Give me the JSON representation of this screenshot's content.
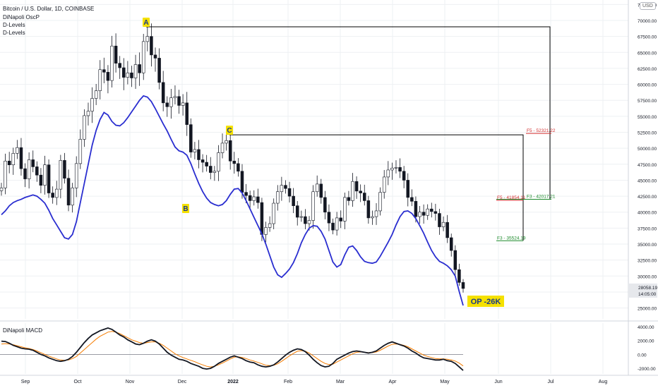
{
  "header": {
    "symbol_line": "Bitcoin / U.S. Dollar, 1D, COINBASE",
    "indicators": [
      "DiNapoli OscP",
      "D-Levels",
      "D-Levels"
    ],
    "currency_badge": "USD"
  },
  "macd_panel": {
    "title": "DiNapoli MACD"
  },
  "colors": {
    "candle": "#131722",
    "oscp_line": "#2a2ed0",
    "macd_line": "#131722",
    "signal_line": "#f57c00",
    "label_bg": "#f5e100",
    "f3_color": "#1b8a2a",
    "f5_color": "#d32f2f",
    "swing_line": "#000000"
  },
  "chart_data": [
    {
      "type": "candlestick",
      "title": "Bitcoin / U.S. Dollar, 1D, COINBASE",
      "x_ticks": [
        "Sep",
        "Oct",
        "Nov",
        "Dec",
        "2022",
        "Feb",
        "Mar",
        "Apr",
        "May",
        "Jun",
        "Jul",
        "Aug"
      ],
      "y_ticks": [
        "72500.00",
        "70000.00",
        "67500.00",
        "65000.00",
        "62500.00",
        "60000.00",
        "57500.00",
        "55000.00",
        "52500.00",
        "50000.00",
        "47500.00",
        "45000.00",
        "42500.00",
        "40000.00",
        "37500.00",
        "35000.00",
        "32500.00",
        "30000.00",
        "27500.00",
        "25000.00"
      ],
      "ylim": [
        23300,
        73200
      ],
      "last_price": "28058.19",
      "countdown": "14:05:00",
      "swing_points": [
        {
          "label": "A",
          "value": 69000
        },
        {
          "label": "B",
          "value": 42000
        },
        {
          "label": "C",
          "value": 52100
        }
      ],
      "levels": [
        {
          "label": "F5 - 52321.22",
          "value": 52321.22,
          "kind": "F5"
        },
        {
          "label": "F3 - 42017.21",
          "value": 42017.21,
          "kind": "F3"
        },
        {
          "label": "F5 - 41854.11",
          "value": 41854.11,
          "kind": "F5"
        },
        {
          "label": "F3 - 35524.19",
          "value": 35524.19,
          "kind": "F3"
        }
      ],
      "annotation": "OP -26K",
      "price_series": [
        43800,
        48000,
        47400,
        49200,
        50100,
        46800,
        45200,
        48200,
        47100,
        45800,
        44200,
        47400,
        43000,
        42300,
        43600,
        48100,
        45300,
        41100,
        43800,
        47600,
        51400,
        55100,
        55800,
        57800,
        59000,
        62300,
        61900,
        60600,
        66000,
        63300,
        62600,
        61100,
        61800,
        61000,
        63100,
        61800,
        66700,
        67500,
        64600,
        64100,
        60300,
        57100,
        56500,
        57900,
        58100,
        56700,
        57100,
        53700,
        49400,
        49800,
        48200,
        47800,
        47200,
        46200,
        46400,
        49300,
        50800,
        51200,
        48000,
        47600,
        46400,
        43100,
        42600,
        41800,
        42400,
        41500,
        36500,
        37600,
        38200,
        41400,
        43200,
        44200,
        43700,
        42500,
        41000,
        39200,
        39300,
        38200,
        38700,
        43200,
        44400,
        42300,
        40000,
        38300,
        37200,
        39100,
        38600,
        42300,
        41800,
        44800,
        43300,
        43000,
        41800,
        39100,
        39300,
        40200,
        43100,
        45500,
        46600,
        46900,
        47000,
        46400,
        45000,
        42300,
        41700,
        39300,
        40000,
        39500,
        40500,
        40100,
        39800,
        37700,
        38400,
        36000,
        34000,
        31000,
        29000,
        28058
      ],
      "oscp_series": [
        39600,
        40200,
        41000,
        41500,
        41800,
        42000,
        42300,
        42500,
        42700,
        42500,
        42000,
        41400,
        40300,
        39000,
        38000,
        37000,
        36000,
        35800,
        36500,
        38500,
        41500,
        44500,
        47500,
        50500,
        52800,
        54500,
        55600,
        55200,
        54200,
        53600,
        53500,
        54000,
        54800,
        55700,
        56600,
        57500,
        58200,
        58000,
        57300,
        56200,
        55000,
        53800,
        52700,
        51400,
        50200,
        49600,
        49400,
        48900,
        47600,
        46000,
        44500,
        43200,
        42200,
        41500,
        41200,
        41000,
        41200,
        41800,
        42800,
        43600,
        43700,
        43000,
        41800,
        40500,
        39200,
        37900,
        36600,
        35000,
        33200,
        31400,
        30200,
        29800,
        30400,
        31100,
        32100,
        33500,
        35200,
        36500,
        37500,
        37900,
        37800,
        37000,
        35800,
        34000,
        32200,
        31400,
        31800,
        33300,
        34500,
        34700,
        34000,
        33000,
        32300,
        32100,
        32000,
        32200,
        33100,
        34200,
        35300,
        36500,
        38000,
        39300,
        40100,
        40200,
        39800,
        39000,
        37900,
        36700,
        35300,
        34000,
        33000,
        32300,
        32000,
        31600,
        31000,
        30000,
        27600,
        25400
      ],
      "macd_panel": {
        "y_ticks": [
          "4000.00",
          "2000.00",
          "0.00",
          "-2000.00"
        ],
        "ylim": [
          -2800,
          4500
        ],
        "zero_line": 0,
        "macd_series": [
          1900,
          1850,
          1600,
          1300,
          1100,
          900,
          800,
          750,
          600,
          300,
          0,
          -200,
          -500,
          -700,
          -900,
          -1000,
          -900,
          -700,
          -300,
          300,
          1000,
          1700,
          2300,
          2800,
          3100,
          3400,
          3600,
          3800,
          3600,
          3200,
          2800,
          2500,
          2100,
          1800,
          1500,
          1400,
          1600,
          1900,
          2100,
          1900,
          1500,
          900,
          300,
          -100,
          -400,
          -700,
          -800,
          -1000,
          -1300,
          -1500,
          -1700,
          -2000,
          -2100,
          -2000,
          -1700,
          -1300,
          -1000,
          -700,
          -400,
          -200,
          -400,
          -600,
          -900,
          -1100,
          -1200,
          -1500,
          -1700,
          -1800,
          -1700,
          -1500,
          -1100,
          -600,
          -100,
          300,
          600,
          800,
          700,
          400,
          -100,
          -700,
          -1200,
          -1600,
          -1800,
          -1700,
          -1300,
          -700,
          -400,
          -100,
          200,
          400,
          500,
          400,
          300,
          200,
          300,
          500,
          900,
          1300,
          1600,
          1800,
          1600,
          1400,
          1200,
          900,
          500,
          200,
          -200,
          -500,
          -600,
          -700,
          -800,
          -800,
          -700,
          -900,
          -1000,
          -1300,
          -1800,
          -2300
        ],
        "signal_series": [
          1500,
          1550,
          1500,
          1400,
          1250,
          1100,
          950,
          850,
          700,
          500,
          250,
          0,
          -250,
          -450,
          -650,
          -800,
          -850,
          -800,
          -600,
          -300,
          200,
          700,
          1200,
          1700,
          2200,
          2600,
          2900,
          3200,
          3300,
          3200,
          3000,
          2700,
          2400,
          2100,
          1900,
          1700,
          1600,
          1700,
          1800,
          1800,
          1600,
          1300,
          900,
          500,
          100,
          -200,
          -450,
          -650,
          -850,
          -1050,
          -1300,
          -1500,
          -1700,
          -1800,
          -1700,
          -1500,
          -1250,
          -950,
          -650,
          -400,
          -350,
          -450,
          -600,
          -800,
          -950,
          -1150,
          -1350,
          -1550,
          -1600,
          -1550,
          -1350,
          -1000,
          -600,
          -200,
          150,
          450,
          550,
          450,
          200,
          -200,
          -600,
          -1000,
          -1300,
          -1450,
          -1400,
          -1100,
          -800,
          -500,
          -200,
          100,
          300,
          350,
          300,
          250,
          250,
          350,
          600,
          900,
          1200,
          1450,
          1500,
          1450,
          1300,
          1100,
          800,
          500,
          200,
          -100,
          -300,
          -450,
          -600,
          -650,
          -650,
          -700,
          -800,
          -950,
          -1250,
          -1650
        ]
      }
    }
  ]
}
